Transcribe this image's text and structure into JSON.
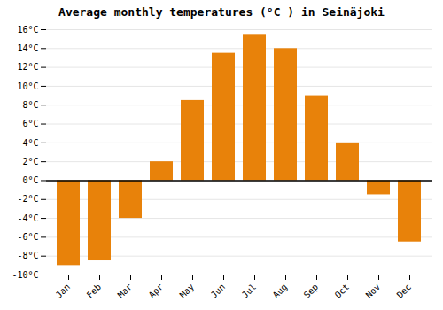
{
  "chart_data": {
    "type": "bar",
    "title": "Average monthly temperatures (°C ) in Seinäjoki",
    "categories": [
      "Jan",
      "Feb",
      "Mar",
      "Apr",
      "May",
      "Jun",
      "Jul",
      "Aug",
      "Sep",
      "Oct",
      "Nov",
      "Dec"
    ],
    "values": [
      -9.0,
      -8.5,
      -4.0,
      2.0,
      8.5,
      13.5,
      15.5,
      14.0,
      9.0,
      4.0,
      -1.5,
      -6.5
    ],
    "color": "#E8820A",
    "ylim": [
      -10,
      16
    ],
    "yticks": [
      {
        "value": -10,
        "label": "-10°C"
      },
      {
        "value": -8,
        "label": "-8°C"
      },
      {
        "value": -6,
        "label": "-6°C"
      },
      {
        "value": -4,
        "label": "-4°C"
      },
      {
        "value": -2,
        "label": "-2°C"
      },
      {
        "value": 0,
        "label": "0°C"
      },
      {
        "value": 2,
        "label": "2°C"
      },
      {
        "value": 4,
        "label": "4°C"
      },
      {
        "value": 6,
        "label": "6°C"
      },
      {
        "value": 8,
        "label": "8°C"
      },
      {
        "value": 10,
        "label": "10°C"
      },
      {
        "value": 12,
        "label": "12°C"
      },
      {
        "value": 14,
        "label": "14°C"
      },
      {
        "value": 16,
        "label": "16°C"
      }
    ],
    "grid": true
  }
}
